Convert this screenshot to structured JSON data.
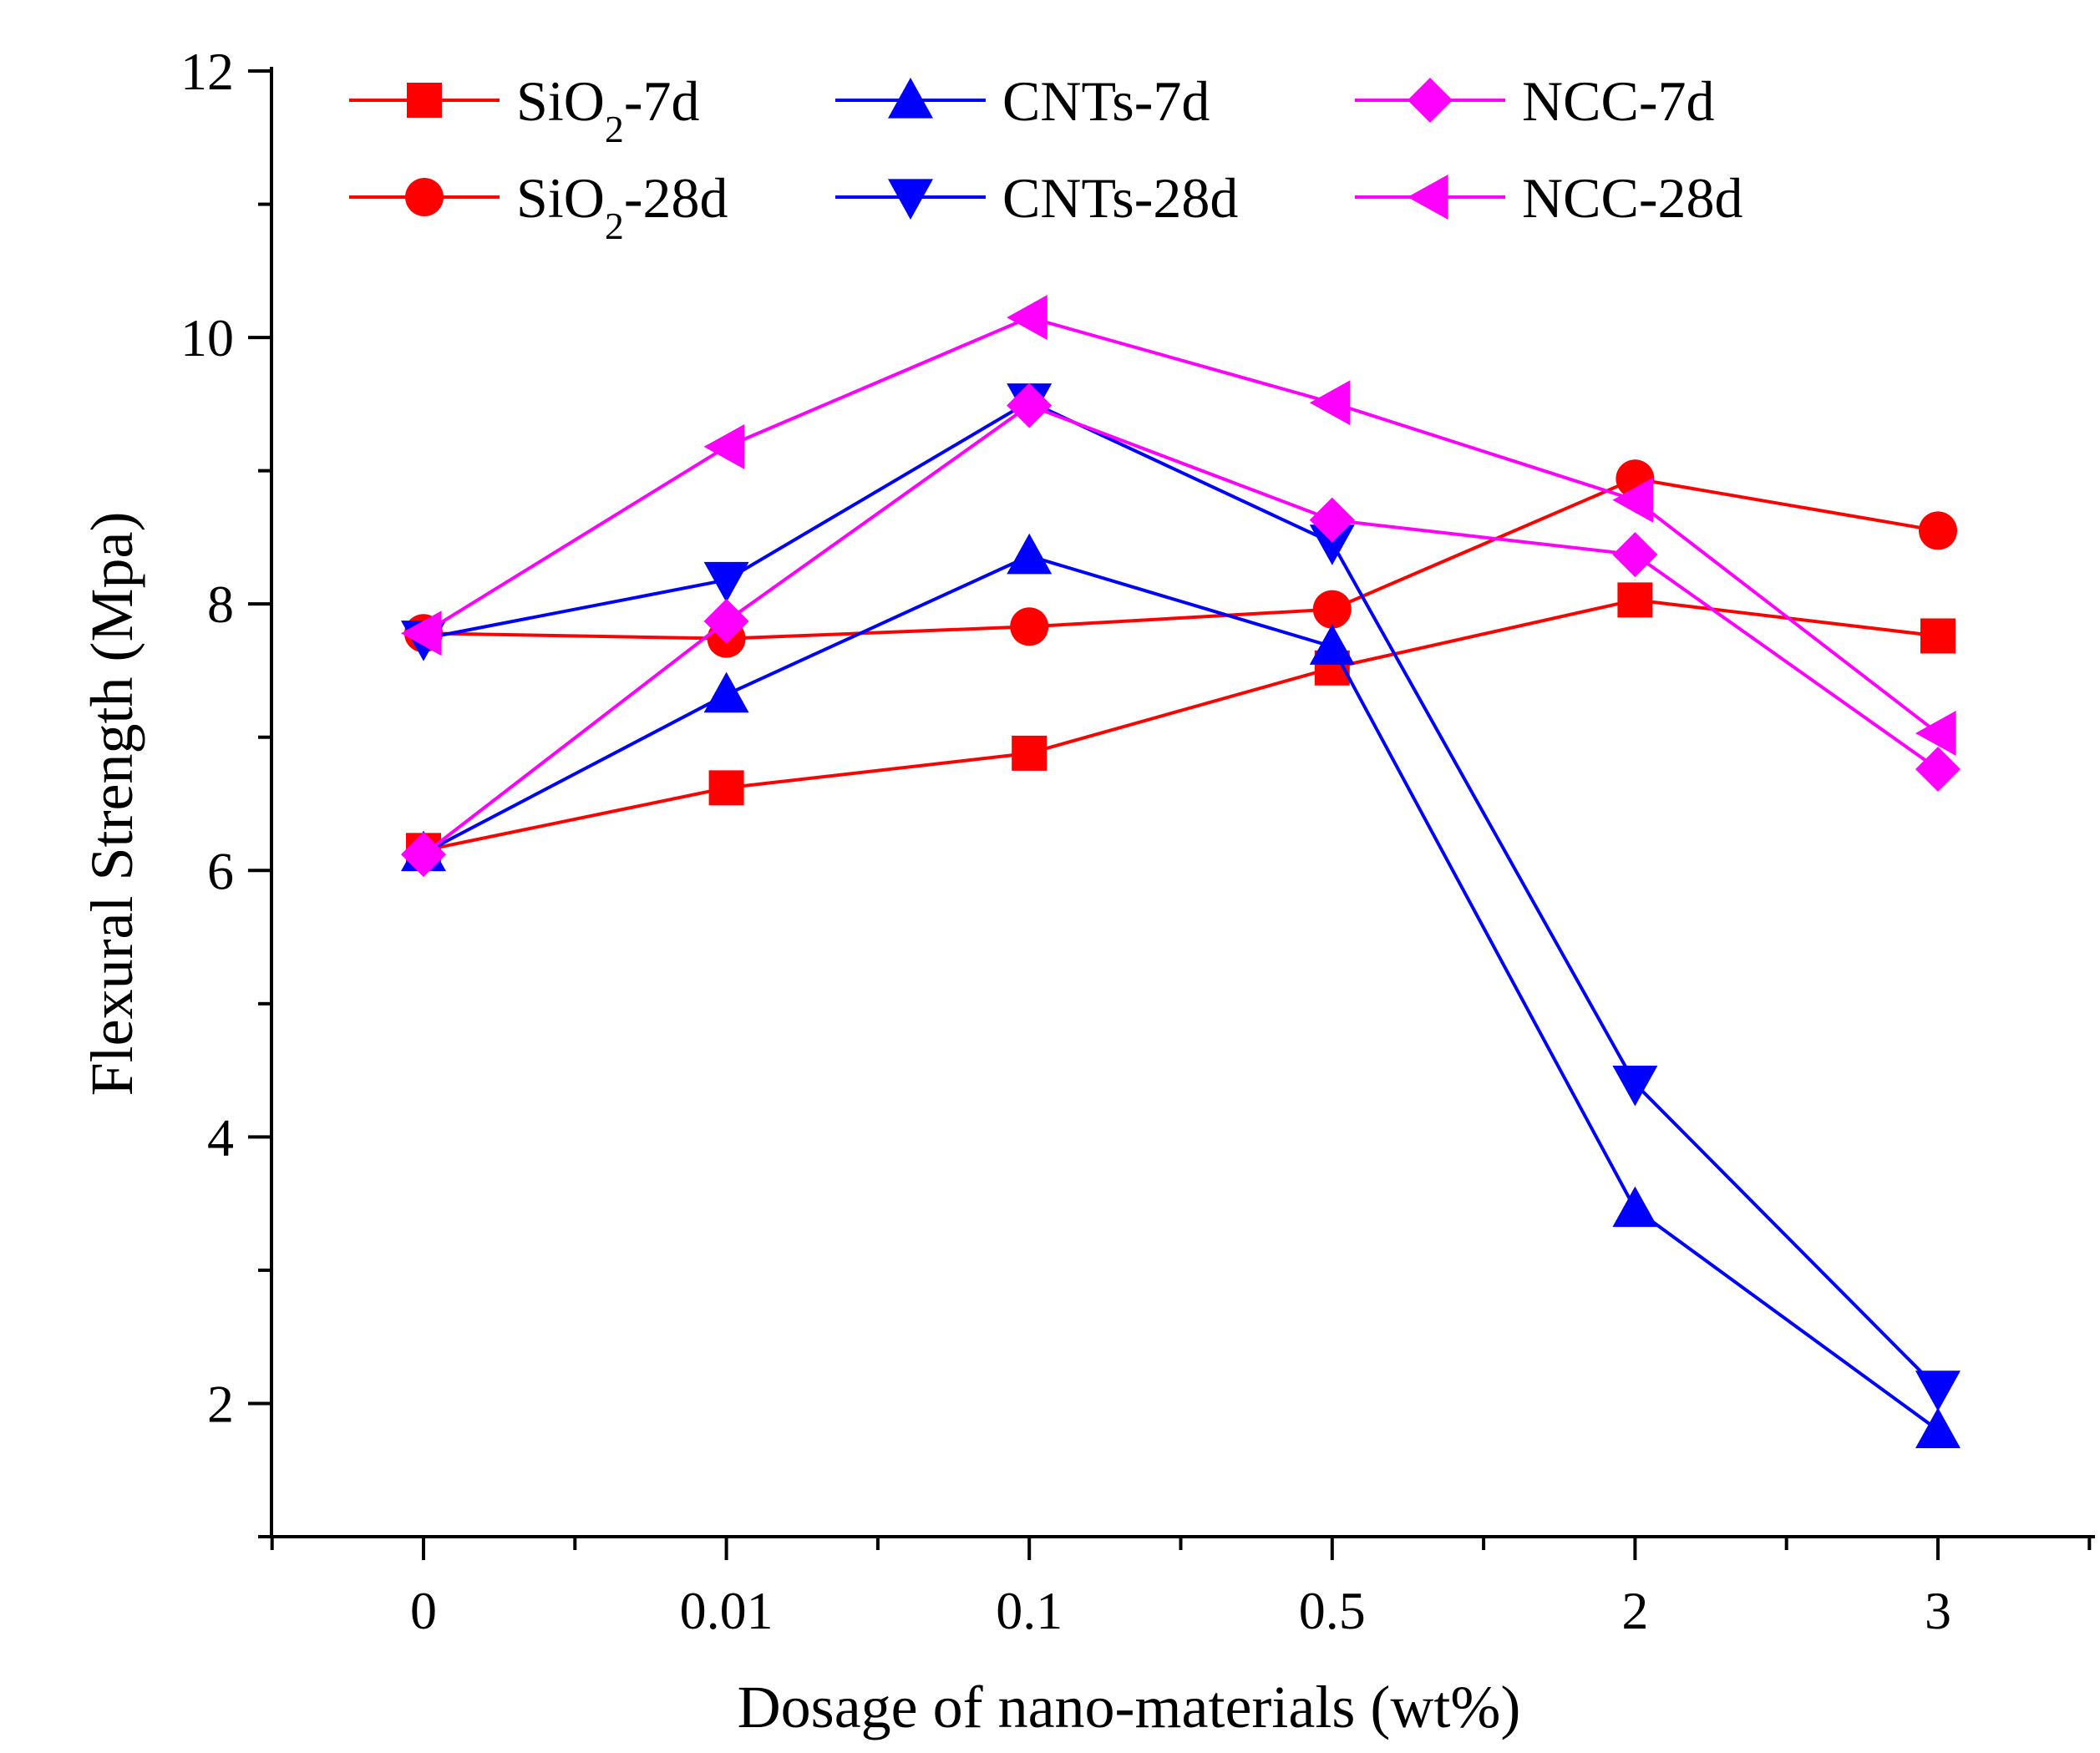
{
  "chart_data": {
    "type": "line",
    "title": "",
    "xlabel": "Dosage of  nano-materials (wt%)",
    "ylabel": "Flexural Strength (Mpa)",
    "categories": [
      "0",
      "0.01",
      "0.1",
      "0.5",
      "2",
      "3"
    ],
    "ylim": [
      1,
      12
    ],
    "yticks": [
      2,
      4,
      6,
      8,
      10,
      12
    ],
    "grid": false,
    "legend_position": "top",
    "series": [
      {
        "name": "SiO2-7d",
        "label_main": "SiO",
        "label_sub": "2",
        "label_suffix": "-7d",
        "color": "#ff0000",
        "marker": "square",
        "values": [
          6.15,
          6.62,
          6.88,
          7.52,
          8.03,
          7.76
        ]
      },
      {
        "name": "SiO2-28d",
        "label_main": "SiO",
        "label_sub": "2",
        "label_suffix": "-28d",
        "color": "#ff0000",
        "marker": "circle",
        "values": [
          7.78,
          7.74,
          7.83,
          7.96,
          8.94,
          8.55
        ]
      },
      {
        "name": "CNTs-7d",
        "label_main": "CNTs-7d",
        "label_sub": "",
        "label_suffix": "",
        "color": "#0000ff",
        "marker": "triangle-up",
        "values": [
          6.13,
          7.32,
          8.36,
          7.68,
          3.46,
          1.8
        ]
      },
      {
        "name": "CNTs-28d",
        "label_main": "CNTs-28d",
        "label_sub": "",
        "label_suffix": "",
        "color": "#0000ff",
        "marker": "triangle-down",
        "values": [
          7.74,
          8.18,
          9.52,
          8.46,
          4.4,
          2.11
        ]
      },
      {
        "name": "NCC-7d",
        "label_main": "NCC-7d",
        "label_sub": "",
        "label_suffix": "",
        "color": "#ff00ff",
        "marker": "diamond",
        "values": [
          6.12,
          7.87,
          9.49,
          8.63,
          8.37,
          6.76
        ]
      },
      {
        "name": "NCC-28d",
        "label_main": "NCC-28d",
        "label_sub": "",
        "label_suffix": "",
        "color": "#ff00ff",
        "marker": "triangle-left",
        "values": [
          7.78,
          9.18,
          10.15,
          9.51,
          8.78,
          7.03
        ]
      }
    ]
  }
}
